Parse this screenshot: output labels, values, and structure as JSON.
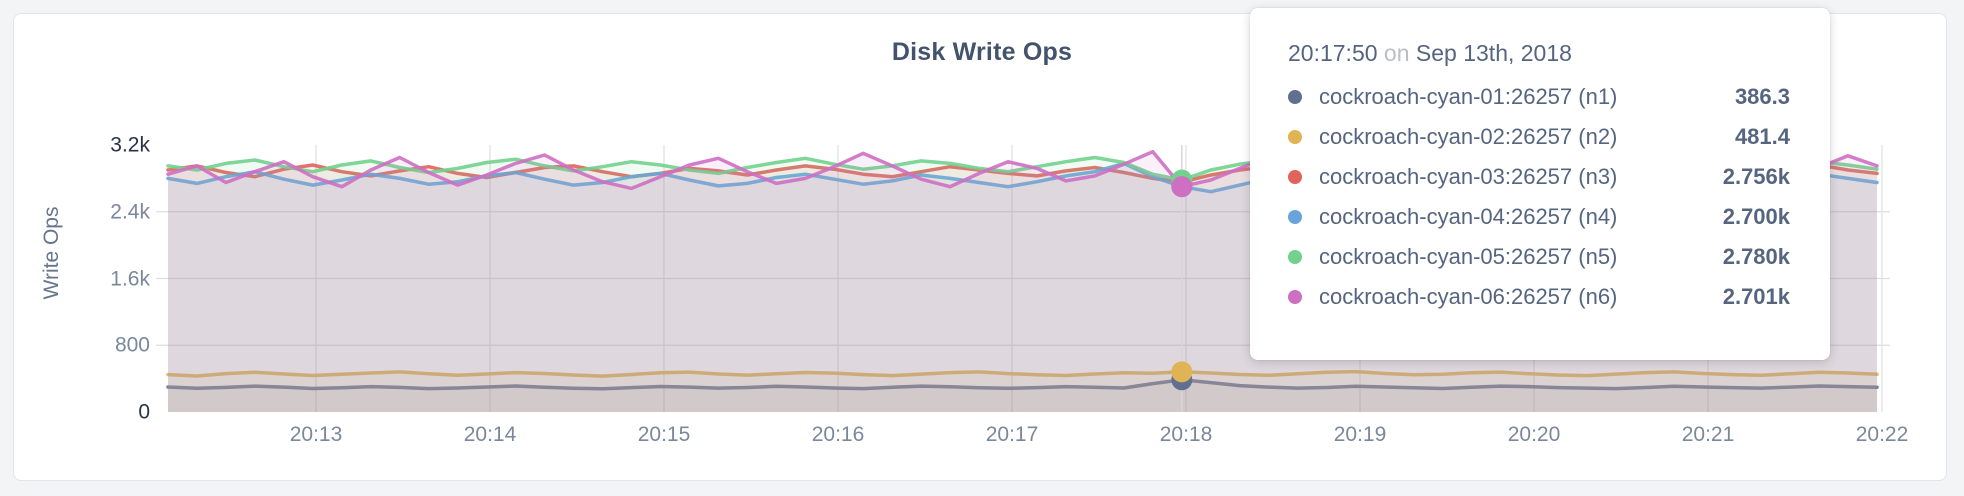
{
  "panel": {
    "title": "Disk Write Ops"
  },
  "yaxis": {
    "label": "Write Ops",
    "ticks": [
      {
        "value": 0,
        "label": "0",
        "strong": true
      },
      {
        "value": 800,
        "label": "800",
        "strong": false
      },
      {
        "value": 1600,
        "label": "1.6k",
        "strong": false
      },
      {
        "value": 2400,
        "label": "2.4k",
        "strong": false
      },
      {
        "value": 3200,
        "label": "3.2k",
        "strong": true
      }
    ]
  },
  "xaxis": {
    "ticks": [
      "20:13",
      "20:14",
      "20:15",
      "20:16",
      "20:17",
      "20:18",
      "20:19",
      "20:20",
      "20:21",
      "20:22"
    ]
  },
  "tooltip": {
    "time": "20:17:50",
    "on": "on",
    "date": "Sep 13th, 2018",
    "rows": [
      {
        "name": "cockroach-cyan-01:26257 (n1)",
        "value": "386.3",
        "color": "#61708e"
      },
      {
        "name": "cockroach-cyan-02:26257 (n2)",
        "value": "481.4",
        "color": "#e0b454"
      },
      {
        "name": "cockroach-cyan-03:26257 (n3)",
        "value": "2.756k",
        "color": "#e0635c"
      },
      {
        "name": "cockroach-cyan-04:26257 (n4)",
        "value": "2.700k",
        "color": "#68a4da"
      },
      {
        "name": "cockroach-cyan-05:26257 (n5)",
        "value": "2.780k",
        "color": "#71d18d"
      },
      {
        "name": "cockroach-cyan-06:26257 (n6)",
        "value": "2.701k",
        "color": "#ce6fc3"
      }
    ]
  },
  "chart_data": {
    "type": "line",
    "title": "Disk Write Ops",
    "xlabel": "",
    "ylabel": "Write Ops",
    "ylim": [
      0,
      3200
    ],
    "grid": true,
    "x_ticks": [
      "20:13",
      "20:14",
      "20:15",
      "20:16",
      "20:17",
      "20:18",
      "20:19",
      "20:20",
      "20:21",
      "20:22"
    ],
    "hover": {
      "index": 35,
      "time": "20:17:50",
      "date": "Sep 13th, 2018"
    },
    "series": [
      {
        "name": "cockroach-cyan-01:26257 (n1)",
        "color": "#61708e",
        "hover_value": 386.3,
        "values": [
          300,
          285,
          295,
          310,
          298,
          282,
          290,
          305,
          295,
          280,
          288,
          300,
          312,
          296,
          284,
          278,
          292,
          306,
          298,
          286,
          294,
          308,
          300,
          288,
          280,
          296,
          310,
          302,
          290,
          284,
          292,
          304,
          296,
          288,
          340,
          386.3,
          352,
          316,
          298,
          286,
          294,
          308,
          300,
          290,
          282,
          296,
          310,
          304,
          292,
          286,
          280,
          294,
          308,
          300,
          292,
          286,
          298,
          312,
          304,
          296
        ]
      },
      {
        "name": "cockroach-cyan-02:26257 (n2)",
        "color": "#e0b454",
        "hover_value": 481.4,
        "values": [
          448,
          432,
          460,
          476,
          455,
          438,
          452,
          468,
          480,
          458,
          440,
          455,
          472,
          462,
          444,
          430,
          450,
          470,
          478,
          456,
          442,
          458,
          474,
          466,
          448,
          436,
          454,
          472,
          480,
          460,
          446,
          438,
          456,
          470,
          465,
          481.4,
          468,
          450,
          440,
          458,
          476,
          484,
          462,
          446,
          452,
          470,
          478,
          458,
          444,
          436,
          454,
          472,
          480,
          462,
          448,
          440,
          458,
          476,
          468,
          452
        ]
      },
      {
        "name": "cockroach-cyan-03:26257 (n3)",
        "color": "#e0635c",
        "hover_value": 2756,
        "values": [
          2900,
          2950,
          2870,
          2820,
          2910,
          2960,
          2880,
          2830,
          2890,
          2940,
          2860,
          2810,
          2870,
          2930,
          2950,
          2880,
          2820,
          2860,
          2920,
          2890,
          2840,
          2900,
          2950,
          2910,
          2850,
          2820,
          2880,
          2940,
          2900,
          2860,
          2830,
          2890,
          2930,
          2870,
          2800,
          2756,
          2840,
          2900,
          2940,
          2880,
          2830,
          2870,
          2920,
          2890,
          2850,
          2900,
          2950,
          2910,
          2860,
          2820,
          2880,
          2930,
          2900,
          2850,
          2810,
          2870,
          2920,
          2960,
          2900,
          2860
        ]
      },
      {
        "name": "cockroach-cyan-04:26257 (n4)",
        "color": "#68a4da",
        "hover_value": 2700,
        "values": [
          2800,
          2740,
          2820,
          2880,
          2790,
          2720,
          2780,
          2850,
          2800,
          2730,
          2760,
          2830,
          2870,
          2790,
          2720,
          2750,
          2820,
          2860,
          2780,
          2710,
          2740,
          2810,
          2850,
          2790,
          2730,
          2770,
          2840,
          2800,
          2750,
          2700,
          2760,
          2830,
          2880,
          2980,
          2820,
          2700,
          2640,
          2720,
          2800,
          2760,
          2700,
          2750,
          2820,
          2860,
          2790,
          2720,
          2760,
          2830,
          2800,
          2740,
          2700,
          2770,
          2840,
          2810,
          2750,
          2710,
          2780,
          2850,
          2800,
          2750
        ]
      },
      {
        "name": "cockroach-cyan-05:26257 (n5)",
        "color": "#71d18d",
        "hover_value": 2780,
        "values": [
          2950,
          2900,
          2980,
          3020,
          2940,
          2880,
          2960,
          3010,
          2930,
          2870,
          2920,
          2990,
          3030,
          2950,
          2890,
          2940,
          3000,
          2960,
          2900,
          2860,
          2930,
          2990,
          3040,
          2970,
          2910,
          2950,
          3010,
          2980,
          2920,
          2880,
          2940,
          3000,
          3050,
          2990,
          2850,
          2780,
          2900,
          2970,
          3020,
          2960,
          2900,
          2950,
          3010,
          2970,
          2910,
          2870,
          2930,
          2990,
          3040,
          2980,
          2920,
          2960,
          3020,
          2990,
          2930,
          2890,
          2950,
          3000,
          2960,
          2910
        ]
      },
      {
        "name": "cockroach-cyan-06:26257 (n6)",
        "color": "#ce6fc3",
        "hover_value": 2701,
        "values": [
          2850,
          2950,
          2750,
          2880,
          3000,
          2820,
          2700,
          2900,
          3050,
          2870,
          2720,
          2840,
          2980,
          3080,
          2900,
          2760,
          2680,
          2820,
          2960,
          3040,
          2880,
          2740,
          2800,
          2940,
          3100,
          2950,
          2790,
          2700,
          2860,
          3000,
          2920,
          2770,
          2830,
          2970,
          3120,
          2701,
          2780,
          2920,
          3060,
          2940,
          2800,
          2740,
          2880,
          3020,
          2960,
          2820,
          2760,
          2900,
          3040,
          2980,
          2840,
          2780,
          2920,
          3060,
          2990,
          2850,
          2790,
          2930,
          3070,
          2950
        ]
      }
    ]
  }
}
